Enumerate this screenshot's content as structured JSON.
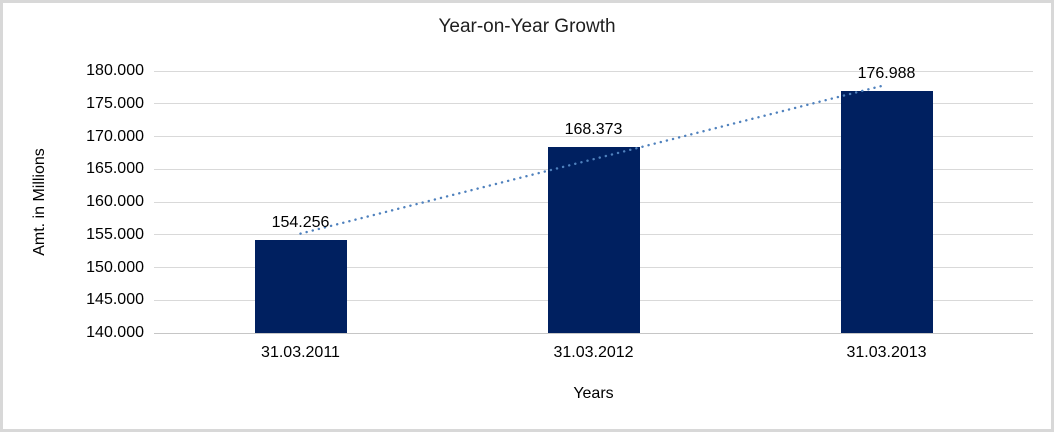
{
  "figure": {
    "border_color": "#d8d8d8",
    "background": "#ffffff"
  },
  "chart_data": {
    "type": "bar",
    "title": "Year-on-Year Growth",
    "xlabel": "Years",
    "ylabel": "Amt. in Millions",
    "categories": [
      "31.03.2011",
      "31.03.2012",
      "31.03.2013"
    ],
    "values": [
      154.256,
      168.373,
      176.988
    ],
    "value_labels": [
      "154.256",
      "168.373",
      "176.988"
    ],
    "ylim": [
      140,
      180
    ],
    "y_ticks": [
      {
        "value": 180,
        "label": "180.000"
      },
      {
        "value": 175,
        "label": "175.000"
      },
      {
        "value": 170,
        "label": "170.000"
      },
      {
        "value": 165,
        "label": "165.000"
      },
      {
        "value": 160,
        "label": "160.000"
      },
      {
        "value": 155,
        "label": "155.000"
      },
      {
        "value": 150,
        "label": "150.000"
      },
      {
        "value": 145,
        "label": "145.000"
      },
      {
        "value": 140,
        "label": "140.000"
      }
    ],
    "grid": true,
    "legend": "none",
    "bar_color": "#002060",
    "gridline_color": "#d9d9d9",
    "axis_line_color": "#c6c6c6",
    "text_color": "#000000",
    "trendline": {
      "type": "linear",
      "style": "dotted",
      "color": "#4f81bd"
    }
  }
}
